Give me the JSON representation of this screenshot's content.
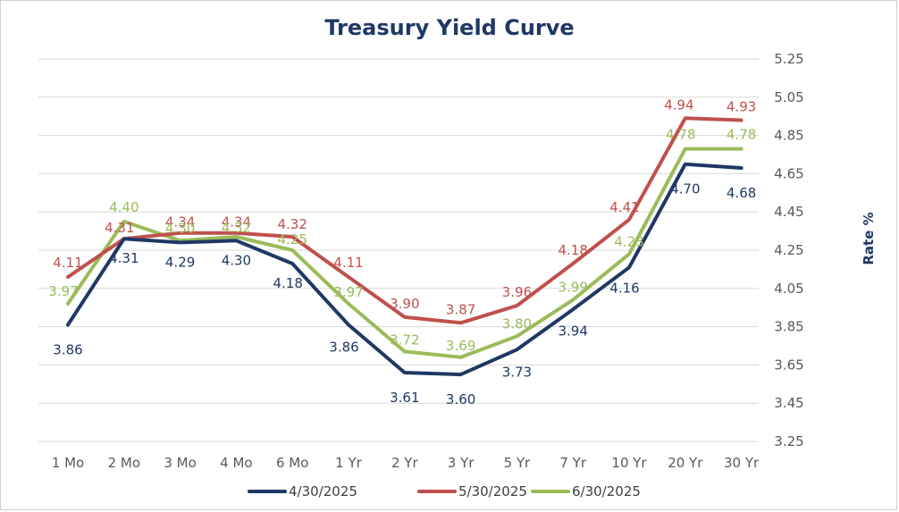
{
  "chart_data": {
    "type": "line",
    "title": "Treasury Yield Curve",
    "xlabel": "",
    "ylabel": "Rate %",
    "categories": [
      "1 Mo",
      "2 Mo",
      "3 Mo",
      "4 Mo",
      "6 Mo",
      "1 Yr",
      "2 Yr",
      "3 Yr",
      "5 Yr",
      "7 Yr",
      "10 Yr",
      "20 Yr",
      "30 Yr"
    ],
    "y_ticks": [
      "3.25",
      "3.45",
      "3.65",
      "3.85",
      "4.05",
      "4.25",
      "4.45",
      "4.65",
      "4.85",
      "5.05",
      "5.25"
    ],
    "ylim": [
      3.25,
      5.25
    ],
    "y_axis_side": "right",
    "grid": true,
    "legend_position": "bottom",
    "series": [
      {
        "name": "4/30/2025",
        "color": "#1F3864",
        "values": [
          3.86,
          4.31,
          4.29,
          4.3,
          4.18,
          3.86,
          3.61,
          3.6,
          3.73,
          3.94,
          4.16,
          4.7,
          4.68
        ],
        "labels": [
          "3.86",
          "4.31",
          "4.29",
          "4.30",
          "4.18",
          "3.86",
          "3.61",
          "3.60",
          "3.73",
          "3.94",
          "4.16",
          "4.70",
          "4.68"
        ]
      },
      {
        "name": "5/30/2025",
        "color": "#C0504D",
        "values": [
          4.11,
          4.31,
          4.34,
          4.34,
          4.32,
          4.11,
          3.9,
          3.87,
          3.96,
          4.18,
          4.41,
          4.94,
          4.93
        ],
        "labels": [
          "4.11",
          "4.31",
          "4.34",
          "4.34",
          "4.32",
          "4.11",
          "3.90",
          "3.87",
          "3.96",
          "4.18",
          "4.41",
          "4.94",
          "4.93"
        ]
      },
      {
        "name": "6/30/2025",
        "color": "#9BBB59",
        "values": [
          3.97,
          4.4,
          4.3,
          4.32,
          4.25,
          3.97,
          3.72,
          3.69,
          3.8,
          3.99,
          4.23,
          4.78,
          4.78
        ],
        "labels": [
          "3.97",
          "4.40",
          "4.30",
          "4.32",
          "4.25",
          "3.97",
          "3.72",
          "3.69",
          "3.80",
          "3.99",
          "4.23",
          "4.78",
          "4.78"
        ]
      }
    ]
  }
}
